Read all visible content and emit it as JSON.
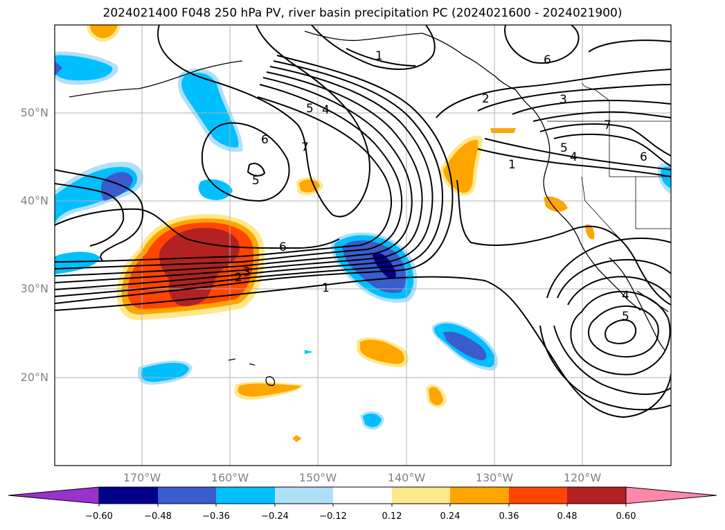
{
  "title": "2024021400 F048 250 hPa PV, river basin precipitation PC (2024021600 - 2024021900)",
  "lat_labels": [
    "50°N",
    "40°N",
    "30°N",
    "20°N"
  ],
  "lon_labels": [
    "170°W",
    "160°W",
    "150°W",
    "140°W",
    "130°W",
    "120°W"
  ],
  "contour_labels": [
    "1",
    "2",
    "3",
    "7",
    "5",
    "4",
    "5",
    "4",
    "6",
    "7",
    "6",
    "5",
    "6",
    "1",
    "3",
    "2",
    "1",
    "5",
    "4",
    "6"
  ],
  "colorbar": {
    "ticks": [
      "−0.60",
      "−0.48",
      "−0.36",
      "−0.24",
      "−0.12",
      "0.12",
      "0.24",
      "0.36",
      "0.48",
      "0.60"
    ],
    "colors": [
      "#9932cc",
      "#00008b",
      "#3a5ccc",
      "#00bfff",
      "#b0e0f8",
      "#ffffff",
      "#ffe88a",
      "#ffa500",
      "#ff4500",
      "#b22222",
      "#ff88aa"
    ]
  },
  "colors": {
    "grid": "#b0b0b0",
    "coast": "#000000",
    "contour": "#000000",
    "axis_label": "#808080"
  }
}
